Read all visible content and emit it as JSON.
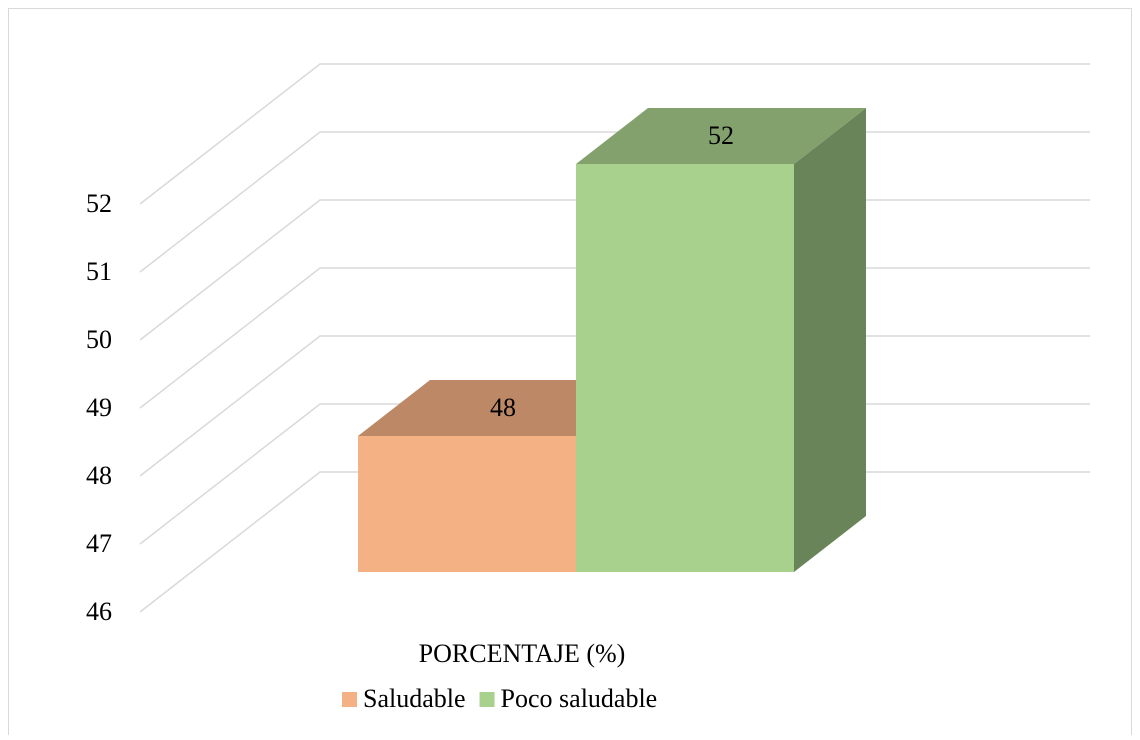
{
  "chart_data": {
    "type": "bar3d",
    "categories": [
      "PORCENTAJE (%)"
    ],
    "series": [
      {
        "name": "Saludable",
        "color": "#f4b183",
        "values": [
          48
        ]
      },
      {
        "name": "Poco saludable",
        "color": "#a9d18e",
        "values": [
          52
        ]
      }
    ],
    "ylim": [
      46,
      52
    ],
    "yticks": [
      46,
      47,
      48,
      49,
      50,
      51,
      52
    ],
    "grid": true,
    "legend": "bottom"
  }
}
